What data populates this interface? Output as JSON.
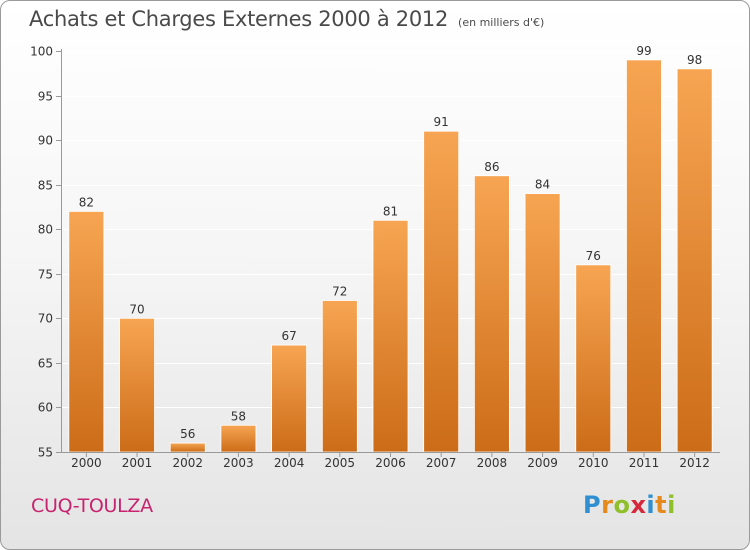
{
  "title": "Achats et Charges Externes 2000 à 2012",
  "subtitle": "(en milliers d'€)",
  "commune": "CUQ-TOULZA",
  "logo": {
    "letters": [
      "P",
      "r",
      "o",
      "x",
      "i",
      "t",
      "i"
    ]
  },
  "colors": {
    "bar_light": "#f7a552",
    "bar_dark": "#cc6c18",
    "axis": "#999999",
    "grid": "#ffffff",
    "commune": "#c8236e"
  },
  "chart_data": {
    "type": "bar",
    "title": "Achats et Charges Externes 2000 à 2012",
    "subtitle": "(en milliers d'€)",
    "categories": [
      "2000",
      "2001",
      "2002",
      "2003",
      "2004",
      "2005",
      "2006",
      "2007",
      "2008",
      "2009",
      "2010",
      "2011",
      "2012"
    ],
    "values": [
      82,
      70,
      56,
      58,
      67,
      72,
      81,
      91,
      86,
      84,
      76,
      99,
      98
    ],
    "ylim": [
      55,
      100
    ],
    "yticks": [
      55,
      60,
      65,
      70,
      75,
      80,
      85,
      90,
      95,
      100
    ],
    "grid": true,
    "legend": "none"
  }
}
